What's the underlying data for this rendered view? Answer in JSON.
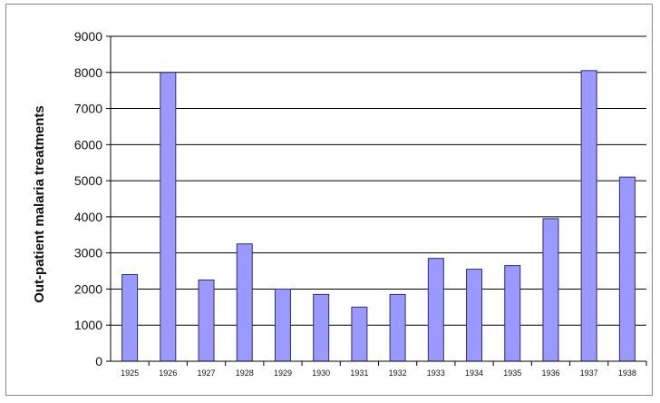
{
  "chart_data": {
    "type": "bar",
    "title": "",
    "xlabel": "",
    "ylabel": "Out-patient malaria treatments",
    "categories": [
      "1925",
      "1926",
      "1927",
      "1928",
      "1929",
      "1930",
      "1931",
      "1932",
      "1933",
      "1934",
      "1935",
      "1936",
      "1937",
      "1938"
    ],
    "values": [
      2400,
      8000,
      2250,
      3250,
      2000,
      1850,
      1500,
      1850,
      2850,
      2550,
      2650,
      3950,
      8050,
      5100
    ],
    "ylim": [
      0,
      9000
    ],
    "yticks": [
      0,
      1000,
      2000,
      3000,
      4000,
      5000,
      6000,
      7000,
      8000,
      9000
    ],
    "grid": true,
    "legend": "none",
    "colors": {
      "bar_fill": "#9999ff",
      "bar_stroke": "#30306a",
      "grid": "#000000",
      "axis": "#000000"
    }
  }
}
